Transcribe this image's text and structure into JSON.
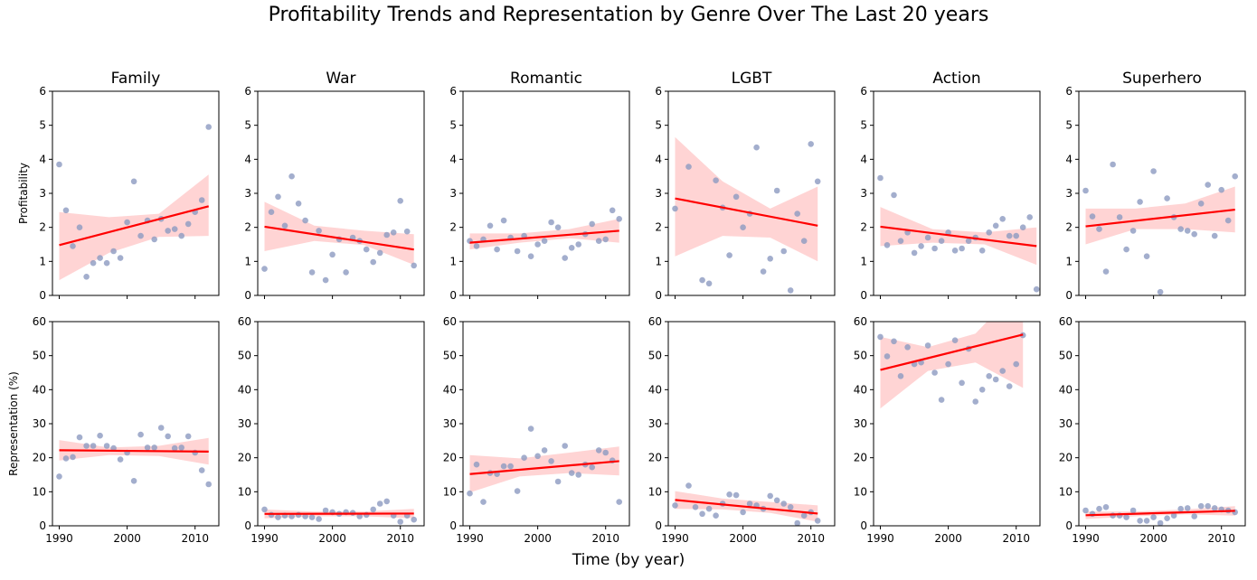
{
  "title": "Profitability Trends and Representation by Genre Over The Last 20 years",
  "xlabel": "Time (by year)",
  "row_labels": {
    "top": "Profitability",
    "bottom": "Representation (%)"
  },
  "colors": {
    "points": "#8c9ac0",
    "fit_line": "#ff0000",
    "ci_band": "#ffcccc"
  },
  "chart_data": [
    {
      "type": "scatter",
      "genre": "Family",
      "metric": "Profitability",
      "xlim": [
        1989,
        2013.5
      ],
      "ylim": [
        0,
        6
      ],
      "yticks": [
        0,
        1,
        2,
        3,
        4,
        5,
        6
      ],
      "xticks": [
        1990,
        2000,
        2010
      ],
      "x": [
        1990,
        1991,
        1992,
        1993,
        1994,
        1995,
        1996,
        1997,
        1998,
        1999,
        2000,
        2001,
        2002,
        2003,
        2004,
        2005,
        2006,
        2007,
        2008,
        2009,
        2010,
        2011,
        2012
      ],
      "y": [
        3.85,
        2.5,
        1.45,
        2.0,
        0.55,
        0.95,
        1.1,
        0.95,
        1.3,
        1.1,
        2.15,
        3.35,
        1.75,
        2.2,
        1.65,
        2.25,
        1.9,
        1.95,
        1.75,
        2.1,
        2.45,
        2.8,
        4.95
      ],
      "fit": [
        1.48,
        2.62
      ],
      "ci_lower": [
        0.45,
        1.25,
        1.72,
        1.75
      ],
      "ci_upper": [
        2.45,
        2.3,
        2.4,
        3.55
      ]
    },
    {
      "type": "scatter",
      "genre": "War",
      "metric": "Profitability",
      "xlim": [
        1989,
        2013.5
      ],
      "ylim": [
        0,
        6
      ],
      "yticks": [
        0,
        1,
        2,
        3,
        4,
        5,
        6
      ],
      "xticks": [
        1990,
        2000,
        2010
      ],
      "x": [
        1990,
        1991,
        1992,
        1993,
        1994,
        1995,
        1996,
        1997,
        1998,
        1999,
        2000,
        2001,
        2002,
        2003,
        2004,
        2005,
        2006,
        2007,
        2008,
        2009,
        2010,
        2011,
        2012
      ],
      "y": [
        0.78,
        2.45,
        2.9,
        2.05,
        3.5,
        2.7,
        2.2,
        0.68,
        1.9,
        0.45,
        1.2,
        1.65,
        0.68,
        1.7,
        1.6,
        1.35,
        0.98,
        1.25,
        1.78,
        1.85,
        2.78,
        1.88,
        0.88
      ],
      "fit": [
        2.02,
        1.35
      ],
      "ci_lower": [
        1.3,
        1.6,
        1.48,
        0.9
      ],
      "ci_upper": [
        2.75,
        2.05,
        1.9,
        1.8
      ]
    },
    {
      "type": "scatter",
      "genre": "Romantic",
      "metric": "Profitability",
      "xlim": [
        1989,
        2013.5
      ],
      "ylim": [
        0,
        6
      ],
      "yticks": [
        0,
        1,
        2,
        3,
        4,
        5,
        6
      ],
      "xticks": [
        1990,
        2000,
        2010
      ],
      "x": [
        1990,
        1991,
        1992,
        1993,
        1994,
        1995,
        1996,
        1997,
        1998,
        1999,
        2000,
        2001,
        2002,
        2003,
        2004,
        2005,
        2006,
        2007,
        2008,
        2009,
        2010,
        2011,
        2012
      ],
      "y": [
        1.6,
        1.45,
        1.65,
        2.05,
        1.35,
        2.2,
        1.7,
        1.3,
        1.75,
        1.15,
        1.5,
        1.6,
        2.15,
        2.0,
        1.1,
        1.4,
        1.5,
        1.8,
        2.1,
        1.6,
        1.65,
        2.5,
        2.25
      ],
      "fit": [
        1.55,
        1.9
      ],
      "ci_lower": [
        1.35,
        1.55,
        1.68,
        1.55
      ],
      "ci_upper": [
        1.82,
        1.82,
        1.95,
        2.25
      ]
    },
    {
      "type": "scatter",
      "genre": "LGBT",
      "metric": "Profitability",
      "xlim": [
        1989,
        2013.5
      ],
      "ylim": [
        0,
        6
      ],
      "yticks": [
        0,
        1,
        2,
        3,
        4,
        5,
        6
      ],
      "xticks": [
        1990,
        2000,
        2010
      ],
      "x": [
        1990,
        1992,
        1994,
        1995,
        1996,
        1997,
        1998,
        1999,
        2000,
        2001,
        2002,
        2003,
        2004,
        2005,
        2006,
        2007,
        2008,
        2009,
        2010,
        2011
      ],
      "y": [
        2.55,
        3.78,
        0.45,
        0.35,
        3.38,
        2.58,
        1.18,
        2.9,
        2.0,
        2.4,
        4.35,
        0.7,
        1.08,
        3.08,
        1.3,
        0.15,
        2.4,
        1.6,
        4.45,
        3.35
      ],
      "fit": [
        2.85,
        2.05
      ],
      "ci_lower": [
        1.15,
        1.75,
        1.7,
        1.0
      ],
      "ci_upper": [
        4.65,
        3.35,
        2.55,
        3.2
      ]
    },
    {
      "type": "scatter",
      "genre": "Action",
      "metric": "Profitability",
      "xlim": [
        1989,
        2013.5
      ],
      "ylim": [
        0,
        6
      ],
      "yticks": [
        0,
        1,
        2,
        3,
        4,
        5,
        6
      ],
      "xticks": [
        1990,
        2000,
        2010
      ],
      "x": [
        1990,
        1991,
        1992,
        1993,
        1994,
        1995,
        1996,
        1997,
        1998,
        1999,
        2000,
        2001,
        2002,
        2003,
        2004,
        2005,
        2006,
        2007,
        2008,
        2009,
        2010,
        2011,
        2012,
        2013
      ],
      "y": [
        3.45,
        1.48,
        2.95,
        1.6,
        1.85,
        1.25,
        1.45,
        1.7,
        1.38,
        1.6,
        1.85,
        1.32,
        1.38,
        1.6,
        1.7,
        1.32,
        1.85,
        2.05,
        2.25,
        1.75,
        1.75,
        2.0,
        2.3,
        0.18
      ],
      "fit": [
        2.02,
        1.45
      ],
      "ci_lower": [
        1.45,
        1.55,
        1.5,
        0.9
      ],
      "ci_upper": [
        2.6,
        1.95,
        1.85,
        2.0
      ]
    },
    {
      "type": "scatter",
      "genre": "Superhero",
      "metric": "Profitability",
      "xlim": [
        1989,
        2013.5
      ],
      "ylim": [
        0,
        6
      ],
      "yticks": [
        0,
        1,
        2,
        3,
        4,
        5,
        6
      ],
      "xticks": [
        1990,
        2000,
        2010
      ],
      "x": [
        1990,
        1991,
        1992,
        1993,
        1994,
        1995,
        1996,
        1997,
        1998,
        1999,
        2000,
        2001,
        2002,
        2003,
        2004,
        2005,
        2006,
        2007,
        2008,
        2009,
        2010,
        2011,
        2012
      ],
      "y": [
        3.08,
        2.32,
        1.95,
        0.7,
        3.85,
        2.3,
        1.35,
        1.9,
        2.75,
        1.15,
        3.65,
        0.1,
        2.85,
        2.3,
        1.95,
        1.9,
        1.8,
        2.7,
        3.25,
        1.75,
        3.1,
        2.2,
        3.5
      ],
      "fit": [
        2.03,
        2.52
      ],
      "ci_lower": [
        1.5,
        1.95,
        1.95,
        1.85
      ],
      "ci_upper": [
        2.55,
        2.55,
        2.7,
        3.2
      ]
    },
    {
      "type": "scatter",
      "genre": "Family",
      "metric": "Representation (%)",
      "xlim": [
        1989,
        2013.5
      ],
      "ylim": [
        0,
        60
      ],
      "yticks": [
        0,
        10,
        20,
        30,
        40,
        50,
        60
      ],
      "xticks": [
        1990,
        2000,
        2010
      ],
      "x": [
        1990,
        1991,
        1992,
        1993,
        1994,
        1995,
        1996,
        1997,
        1998,
        1999,
        2000,
        2001,
        2002,
        2003,
        2004,
        2005,
        2006,
        2007,
        2008,
        2009,
        2010,
        2011,
        2012
      ],
      "y": [
        14.5,
        19.8,
        20.2,
        26.0,
        23.5,
        23.5,
        26.5,
        23.5,
        22.8,
        19.5,
        21.5,
        13.2,
        26.8,
        23.0,
        23.0,
        28.8,
        26.3,
        22.8,
        23.0,
        26.3,
        21.5,
        16.3,
        12.2
      ],
      "fit": [
        22.2,
        21.8
      ],
      "ci_lower": [
        19.2,
        20.8,
        20.5,
        18.0
      ],
      "ci_upper": [
        25.2,
        23.0,
        23.5,
        25.8
      ]
    },
    {
      "type": "scatter",
      "genre": "War",
      "metric": "Representation (%)",
      "xlim": [
        1989,
        2013.5
      ],
      "ylim": [
        0,
        60
      ],
      "yticks": [
        0,
        10,
        20,
        30,
        40,
        50,
        60
      ],
      "xticks": [
        1990,
        2000,
        2010
      ],
      "x": [
        1990,
        1991,
        1992,
        1993,
        1994,
        1995,
        1996,
        1997,
        1998,
        1999,
        2000,
        2001,
        2002,
        2003,
        2004,
        2005,
        2006,
        2007,
        2008,
        2009,
        2010,
        2011,
        2012
      ],
      "y": [
        4.8,
        3.2,
        2.5,
        3.0,
        2.8,
        3.2,
        2.8,
        2.5,
        2.0,
        4.5,
        4.0,
        3.5,
        4.0,
        3.8,
        2.8,
        3.2,
        4.8,
        6.5,
        7.2,
        3.0,
        1.2,
        3.0,
        1.8
      ],
      "fit": [
        3.5,
        3.6
      ],
      "ci_lower": [
        2.2,
        2.8,
        2.8,
        2.2
      ],
      "ci_upper": [
        4.8,
        4.2,
        4.2,
        5.0
      ]
    },
    {
      "type": "scatter",
      "genre": "Romantic",
      "metric": "Representation (%)",
      "xlim": [
        1989,
        2013.5
      ],
      "ylim": [
        0,
        60
      ],
      "yticks": [
        0,
        10,
        20,
        30,
        40,
        50,
        60
      ],
      "xticks": [
        1990,
        2000,
        2010
      ],
      "x": [
        1990,
        1991,
        1992,
        1993,
        1994,
        1995,
        1996,
        1997,
        1998,
        1999,
        2000,
        2001,
        2002,
        2003,
        2004,
        2005,
        2006,
        2007,
        2008,
        2009,
        2010,
        2011,
        2012
      ],
      "y": [
        9.5,
        18.0,
        7.0,
        15.5,
        15.2,
        17.5,
        17.5,
        10.2,
        20.0,
        28.5,
        20.5,
        22.2,
        19.0,
        13.0,
        23.5,
        15.5,
        15.0,
        18.0,
        17.2,
        22.2,
        21.5,
        19.2,
        7.0
      ],
      "fit": [
        15.2,
        19.0
      ],
      "ci_lower": [
        9.8,
        14.5,
        15.5,
        14.8
      ],
      "ci_upper": [
        20.8,
        19.8,
        21.5,
        23.3
      ]
    },
    {
      "type": "scatter",
      "genre": "LGBT",
      "metric": "Representation (%)",
      "xlim": [
        1989,
        2013.5
      ],
      "ylim": [
        0,
        60
      ],
      "yticks": [
        0,
        10,
        20,
        30,
        40,
        50,
        60
      ],
      "xticks": [
        1990,
        2000,
        2010
      ],
      "x": [
        1990,
        1992,
        1993,
        1994,
        1995,
        1996,
        1997,
        1998,
        1999,
        2000,
        2001,
        2002,
        2003,
        2004,
        2005,
        2006,
        2007,
        2008,
        2009,
        2010,
        2011
      ],
      "y": [
        6.0,
        11.8,
        5.5,
        3.5,
        5.0,
        3.0,
        6.5,
        9.2,
        9.0,
        4.0,
        6.5,
        6.0,
        5.0,
        8.8,
        7.5,
        6.5,
        5.5,
        0.8,
        3.0,
        4.0,
        1.5
      ],
      "fit": [
        7.6,
        3.6
      ],
      "ci_lower": [
        5.0,
        4.8,
        3.8,
        1.2
      ],
      "ci_upper": [
        10.2,
        8.0,
        7.0,
        6.0
      ]
    },
    {
      "type": "scatter",
      "genre": "Action",
      "metric": "Representation (%)",
      "xlim": [
        1989,
        2013.5
      ],
      "ylim": [
        0,
        60
      ],
      "yticks": [
        0,
        10,
        20,
        30,
        40,
        50,
        60
      ],
      "xticks": [
        1990,
        2000,
        2010
      ],
      "x": [
        1990,
        1991,
        1992,
        1993,
        1994,
        1995,
        1996,
        1997,
        1998,
        1999,
        2000,
        2001,
        2002,
        2003,
        2004,
        2005,
        2006,
        2007,
        2008,
        2009,
        2010,
        2011
      ],
      "y": [
        55.5,
        49.8,
        54.2,
        44.0,
        52.5,
        47.5,
        48.0,
        53.0,
        45.0,
        37.0,
        47.5,
        54.5,
        42.0,
        52.0,
        36.5,
        40.0,
        44.0,
        43.0,
        45.5,
        41.0,
        47.5,
        56.0
      ],
      "fit": [
        45.8,
        56.2
      ],
      "ci_lower": [
        34.5,
        45.5,
        48.0,
        40.5
      ],
      "ci_upper": [
        55.5,
        52.5,
        56.5,
        71.0
      ]
    },
    {
      "type": "scatter",
      "genre": "Superhero",
      "metric": "Representation (%)",
      "xlim": [
        1989,
        2013.5
      ],
      "ylim": [
        0,
        60
      ],
      "yticks": [
        0,
        10,
        20,
        30,
        40,
        50,
        60
      ],
      "xticks": [
        1990,
        2000,
        2010
      ],
      "x": [
        1990,
        1991,
        1992,
        1993,
        1994,
        1995,
        1996,
        1997,
        1998,
        1999,
        2000,
        2001,
        2002,
        2003,
        2004,
        2005,
        2006,
        2007,
        2008,
        2009,
        2010,
        2011,
        2012
      ],
      "y": [
        4.5,
        3.5,
        5.0,
        5.5,
        3.0,
        3.0,
        2.5,
        4.5,
        1.5,
        1.5,
        2.5,
        0.8,
        2.2,
        3.0,
        5.0,
        5.2,
        2.8,
        5.8,
        5.8,
        5.2,
        4.8,
        4.5,
        4.0
      ],
      "fit": [
        3.1,
        4.4
      ],
      "ci_lower": [
        2.0,
        2.8,
        3.4,
        3.0
      ],
      "ci_upper": [
        4.2,
        4.2,
        4.8,
        5.8
      ]
    }
  ]
}
